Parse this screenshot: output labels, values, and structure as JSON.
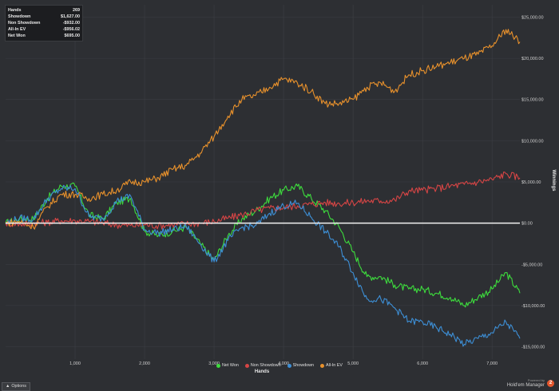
{
  "stats": [
    {
      "label": "Hands",
      "value": "269"
    },
    {
      "label": "Showdown",
      "value": "$1,627.00"
    },
    {
      "label": "Non Showdown",
      "value": "-$932.00"
    },
    {
      "label": "All-In EV",
      "value": "-$956.02"
    },
    {
      "label": "Net Won",
      "value": "$695.00"
    }
  ],
  "options_label": "Options",
  "options_icon": "chevron-up-icon",
  "brand": {
    "powered_by": "Powered by",
    "name": "Hold'em Manager",
    "logo_text": "2"
  },
  "chart_data": {
    "type": "line",
    "title": "",
    "xlabel": "Hands",
    "ylabel": "Winnings",
    "xlim": [
      0,
      7400
    ],
    "ylim": [
      -16500,
      26500
    ],
    "x_ticks": [
      1000,
      2000,
      3000,
      4000,
      5000,
      6000,
      7000
    ],
    "x_tick_labels": [
      "1,000",
      "2,000",
      "3,000",
      "4,000",
      "5,000",
      "6,000",
      "7,000"
    ],
    "y_ticks": [
      25000,
      20000,
      15000,
      10000,
      5000,
      0,
      -5000,
      -10000,
      -15000
    ],
    "y_tick_labels": [
      "$25,000.00",
      "$20,000.00",
      "$15,000.00",
      "$10,000.00",
      "$5,000.00",
      "$0.00",
      "-$5,000.00",
      "-$10,000.00",
      "-$15,000.00"
    ],
    "grid": true,
    "legend_position": "bottom-center",
    "series": [
      {
        "name": "Net Won",
        "color": "#3ddc3d",
        "x": [
          0,
          200,
          400,
          600,
          800,
          1000,
          1200,
          1400,
          1600,
          1800,
          2000,
          2200,
          2400,
          2600,
          2800,
          3000,
          3200,
          3400,
          3600,
          3800,
          4000,
          4200,
          4400,
          4600,
          4800,
          5000,
          5200,
          5400,
          5600,
          5800,
          6000,
          6200,
          6400,
          6600,
          6800,
          7000,
          7200,
          7400
        ],
        "y": [
          0,
          500,
          500,
          3000,
          4500,
          4500,
          1000,
          500,
          2500,
          3000,
          -1000,
          -1500,
          -1000,
          -500,
          -2500,
          -4500,
          -1500,
          500,
          1500,
          3000,
          4000,
          4500,
          3000,
          1500,
          -500,
          -3500,
          -6500,
          -6500,
          -7500,
          -8000,
          -8000,
          -8500,
          -9000,
          -10000,
          -9000,
          -8000,
          -6000,
          -8500
        ]
      },
      {
        "name": "Non Showdown",
        "color": "#d64545",
        "x": [
          0,
          200,
          400,
          600,
          800,
          1000,
          1200,
          1400,
          1600,
          1800,
          2000,
          2200,
          2400,
          2600,
          2800,
          3000,
          3200,
          3400,
          3600,
          3800,
          4000,
          4200,
          4400,
          4600,
          4800,
          5000,
          5200,
          5400,
          5600,
          5800,
          6000,
          6200,
          6400,
          6600,
          6800,
          7000,
          7200,
          7400
        ],
        "y": [
          0,
          -100,
          0,
          100,
          300,
          300,
          200,
          0,
          -200,
          -300,
          -200,
          -300,
          -200,
          -100,
          0,
          200,
          600,
          1000,
          1500,
          1800,
          1900,
          2100,
          2300,
          2500,
          2400,
          2500,
          2700,
          2700,
          2800,
          3900,
          4000,
          4200,
          4500,
          4700,
          5000,
          5300,
          6000,
          5500
        ]
      },
      {
        "name": "Showdown",
        "color": "#3d8fd6",
        "x": [
          0,
          200,
          400,
          600,
          800,
          1000,
          1200,
          1400,
          1600,
          1800,
          2000,
          2200,
          2400,
          2600,
          2800,
          3000,
          3200,
          3400,
          3600,
          3800,
          4000,
          4200,
          4400,
          4600,
          4800,
          5000,
          5200,
          5400,
          5600,
          5800,
          6000,
          6200,
          6400,
          6600,
          6800,
          7000,
          7200,
          7400
        ],
        "y": [
          0,
          600,
          500,
          2900,
          4200,
          4200,
          800,
          500,
          2700,
          3300,
          -800,
          -1200,
          -800,
          -400,
          -2500,
          -4700,
          -2100,
          -500,
          -300,
          1200,
          2100,
          2400,
          700,
          -1000,
          -2900,
          -6000,
          -9200,
          -9200,
          -10300,
          -11900,
          -12000,
          -12700,
          -13500,
          -14700,
          -14000,
          -13300,
          -12000,
          -14000
        ]
      },
      {
        "name": "All-In EV",
        "color": "#e8912c",
        "x": [
          0,
          200,
          400,
          600,
          800,
          1000,
          1200,
          1400,
          1600,
          1800,
          2000,
          2200,
          2400,
          2600,
          2800,
          3000,
          3200,
          3400,
          3600,
          3800,
          4000,
          4200,
          4400,
          4600,
          4800,
          5000,
          5200,
          5400,
          5600,
          5800,
          6000,
          6200,
          6400,
          6600,
          6800,
          7000,
          7200,
          7400
        ],
        "y": [
          0,
          200,
          -500,
          2000,
          3500,
          3500,
          3000,
          3500,
          4000,
          5000,
          5000,
          5500,
          6500,
          7000,
          8500,
          10500,
          13000,
          15000,
          15500,
          16500,
          17500,
          17000,
          16000,
          14500,
          14500,
          15000,
          16500,
          17000,
          16000,
          18000,
          18500,
          19000,
          19500,
          20000,
          20500,
          21500,
          23500,
          22000
        ]
      }
    ]
  }
}
